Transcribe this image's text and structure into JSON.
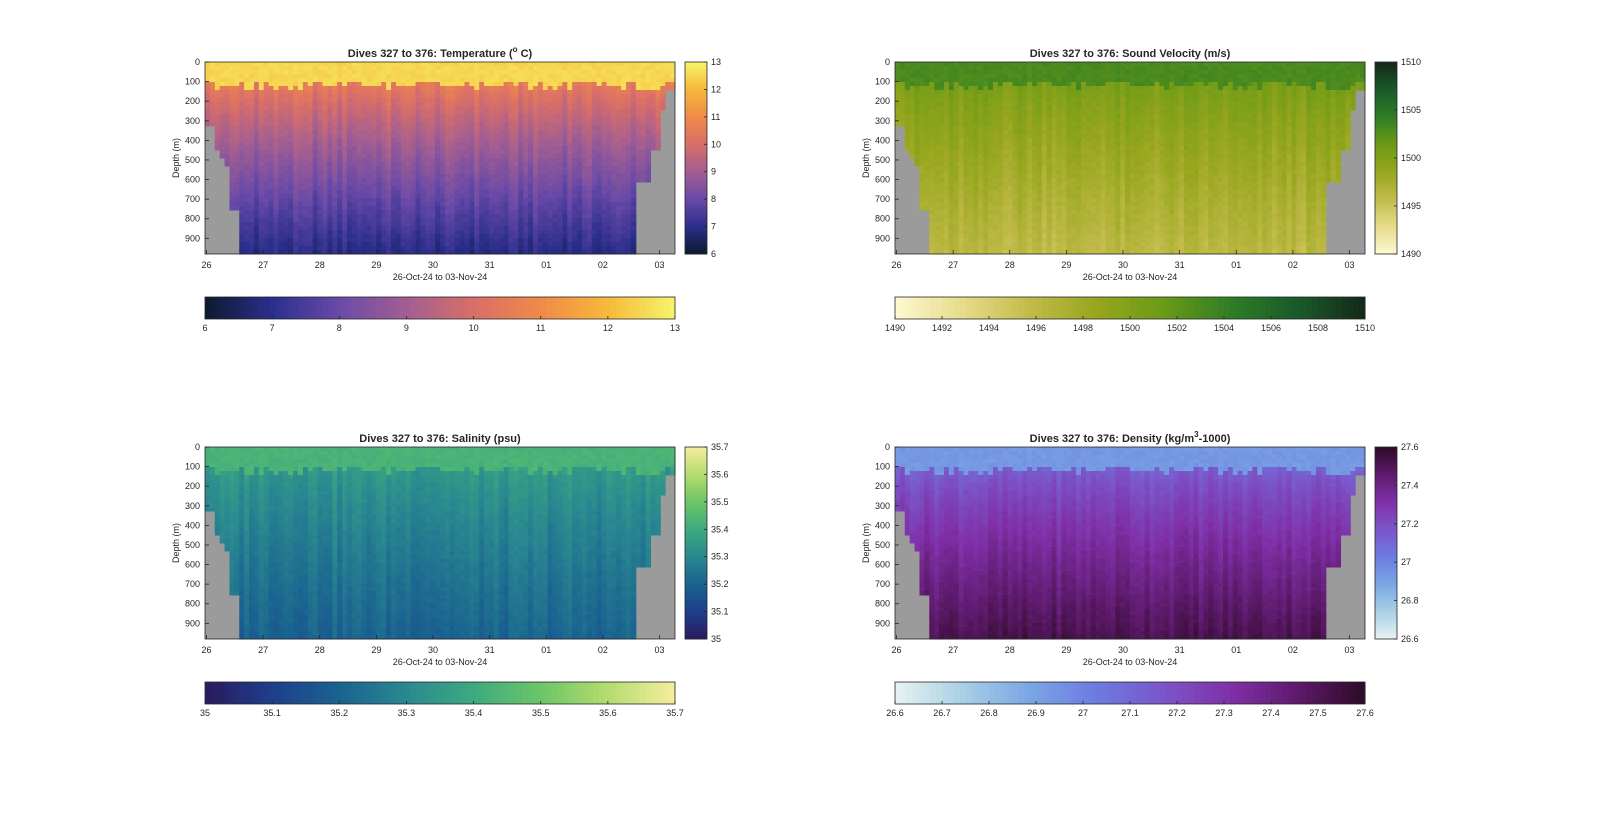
{
  "figure": {
    "date_range_label": "26-Oct-24 to 03-Nov-24",
    "depth_axis_label": "Depth (m)",
    "missing_color": "#9b9b9b"
  },
  "chart_data": [
    {
      "type": "heatmap",
      "id": "temperature",
      "title": "Dives 327 to 376: Temperature (",
      "title_sup": "o",
      "title_end": " C)",
      "xlabel": "26-Oct-24 to 03-Nov-24",
      "ylabel": "Depth (m)",
      "x_ticks": [
        "26",
        "27",
        "28",
        "29",
        "30",
        "31",
        "01",
        "02",
        "03"
      ],
      "y_ticks": [
        0,
        100,
        200,
        300,
        400,
        500,
        600,
        700,
        800,
        900
      ],
      "ylim": [
        0,
        980
      ],
      "clim": [
        6,
        13
      ],
      "colorbar_ticks": [
        "6",
        "7",
        "8",
        "9",
        "10",
        "11",
        "12",
        "13"
      ],
      "horizontal_colorbar_ticks": [
        "6",
        "7",
        "8",
        "9",
        "10",
        "11",
        "12",
        "13"
      ],
      "colormap": [
        "#0b1a2e",
        "#2b2e8c",
        "#6a4aa8",
        "#a25e92",
        "#d96e68",
        "#f08a48",
        "#f7b93a",
        "#f6f46c"
      ],
      "profile_depth_m": [
        [
          0,
          130
        ],
        [
          200,
          220
        ],
        [
          320,
          250
        ],
        [
          450,
          280
        ],
        [
          700,
          300
        ],
        [
          900,
          320
        ],
        [
          1000,
          330
        ]
      ],
      "surface_value": 12.5,
      "mixed_layer_depth_m": 120,
      "deep_value": 6.9
    },
    {
      "type": "heatmap",
      "id": "sound_velocity",
      "title": "Dives 327 to 376: Sound Velocity (m/s)",
      "xlabel": "26-Oct-24 to 03-Nov-24",
      "ylabel": "Depth (m)",
      "x_ticks": [
        "26",
        "27",
        "28",
        "29",
        "30",
        "31",
        "01",
        "02",
        "03"
      ],
      "y_ticks": [
        0,
        100,
        200,
        300,
        400,
        500,
        600,
        700,
        800,
        900
      ],
      "ylim": [
        0,
        980
      ],
      "clim": [
        1490,
        1510
      ],
      "colorbar_ticks": [
        "1490",
        "1495",
        "1500",
        "1505",
        "1510"
      ],
      "horizontal_colorbar_ticks": [
        "1490",
        "1492",
        "1494",
        "1496",
        "1498",
        "1500",
        "1502",
        "1504",
        "1506",
        "1508",
        "1510"
      ],
      "colormap": [
        "#fdf8d0",
        "#e6dc8a",
        "#c2bb4a",
        "#97a61e",
        "#6b9a16",
        "#2f7d26",
        "#195a2a",
        "#152818"
      ],
      "surface_value": 1503,
      "mixed_layer_depth_m": 120,
      "deep_value": 1496
    },
    {
      "type": "heatmap",
      "id": "salinity",
      "title": "Dives 327 to 376: Salinity (psu)",
      "xlabel": "26-Oct-24 to 03-Nov-24",
      "ylabel": "Depth (m)",
      "x_ticks": [
        "26",
        "27",
        "28",
        "29",
        "30",
        "31",
        "01",
        "02",
        "03"
      ],
      "y_ticks": [
        0,
        100,
        200,
        300,
        400,
        500,
        600,
        700,
        800,
        900
      ],
      "ylim": [
        0,
        980
      ],
      "clim": [
        35,
        35.7
      ],
      "colorbar_ticks": [
        "35",
        "35.1",
        "35.2",
        "35.3",
        "35.4",
        "35.5",
        "35.6",
        "35.7"
      ],
      "horizontal_colorbar_ticks": [
        "35",
        "35.1",
        "35.2",
        "35.3",
        "35.4",
        "35.5",
        "35.6",
        "35.7"
      ],
      "colormap": [
        "#2a1a5e",
        "#1d3f8c",
        "#1a6390",
        "#2a8890",
        "#3daa7f",
        "#6cc567",
        "#b5dc6f",
        "#f6ed9f"
      ],
      "surface_value": 35.43,
      "mixed_layer_depth_m": 120,
      "deep_value": 35.2
    },
    {
      "type": "heatmap",
      "id": "density",
      "title": "Dives 327 to 376: Density (kg/m",
      "title_sup": "3",
      "title_end": "-1000)",
      "xlabel": "26-Oct-24 to 03-Nov-24",
      "ylabel": "Depth (m)",
      "x_ticks": [
        "26",
        "27",
        "28",
        "29",
        "30",
        "31",
        "01",
        "02",
        "03"
      ],
      "y_ticks": [
        0,
        100,
        200,
        300,
        400,
        500,
        600,
        700,
        800,
        900
      ],
      "ylim": [
        0,
        980
      ],
      "clim": [
        26.6,
        27.6
      ],
      "colorbar_ticks": [
        "26.6",
        "26.8",
        "27",
        "27.2",
        "27.4",
        "27.6"
      ],
      "horizontal_colorbar_ticks": [
        "26.6",
        "26.7",
        "26.8",
        "26.9",
        "27",
        "27.1",
        "27.2",
        "27.3",
        "27.4",
        "27.5",
        "27.6"
      ],
      "colormap": [
        "#e8f2f0",
        "#a9d0e6",
        "#7aa6e4",
        "#6c7be0",
        "#7b55c8",
        "#8030a8",
        "#5e1a6c",
        "#2d0b26"
      ],
      "surface_value": 26.93,
      "mixed_layer_depth_m": 120,
      "deep_value": 27.52
    }
  ]
}
